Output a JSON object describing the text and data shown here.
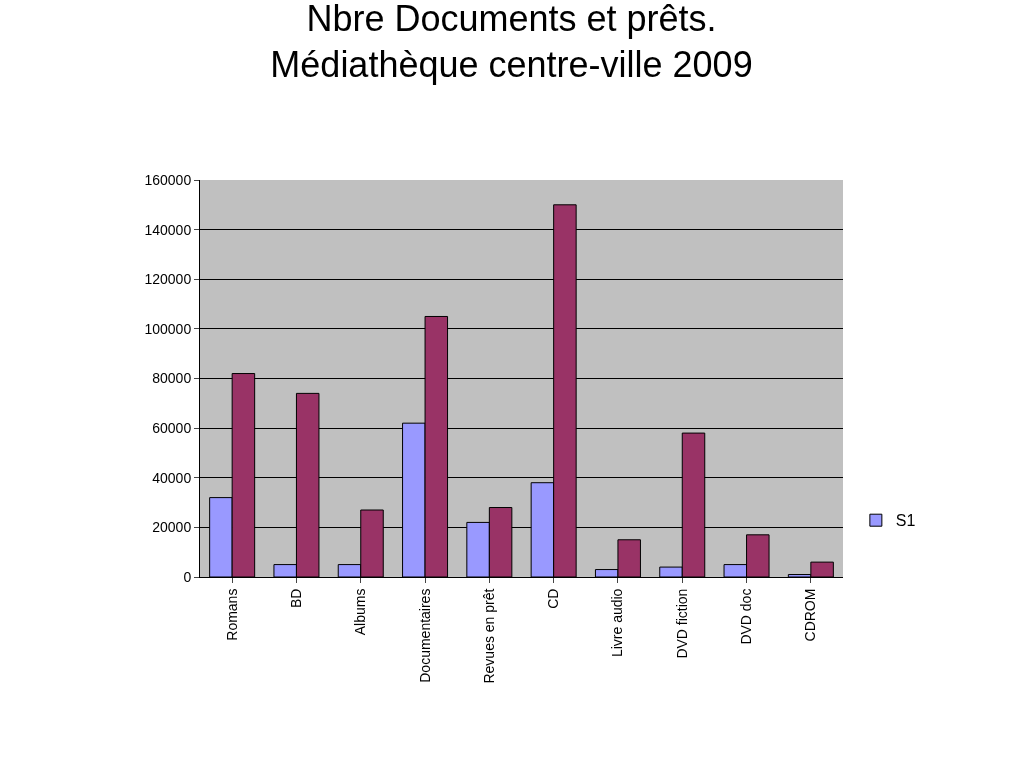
{
  "chart_data": {
    "type": "bar",
    "title": "Nbre Documents et prêts.\nMédiathèque centre-ville 2009",
    "categories": [
      "Romans",
      "BD",
      "Albums",
      "Documentaires",
      "Revues en prêt",
      "CD",
      "Livre audio",
      "DVD fiction",
      "DVD doc",
      "CDROM"
    ],
    "series": [
      {
        "name": "S1",
        "color": "#9999ff",
        "values": [
          32000,
          5000,
          5000,
          62000,
          22000,
          38000,
          3000,
          4000,
          5000,
          1000
        ]
      },
      {
        "color": "#993366",
        "values": [
          82000,
          74000,
          27000,
          105000,
          28000,
          150000,
          15000,
          58000,
          17000,
          6000
        ]
      }
    ],
    "ylim": [
      0,
      160000
    ],
    "yticks": [
      0,
      20000,
      40000,
      60000,
      80000,
      100000,
      120000,
      140000,
      160000
    ],
    "grid": "y",
    "legend": "right"
  }
}
